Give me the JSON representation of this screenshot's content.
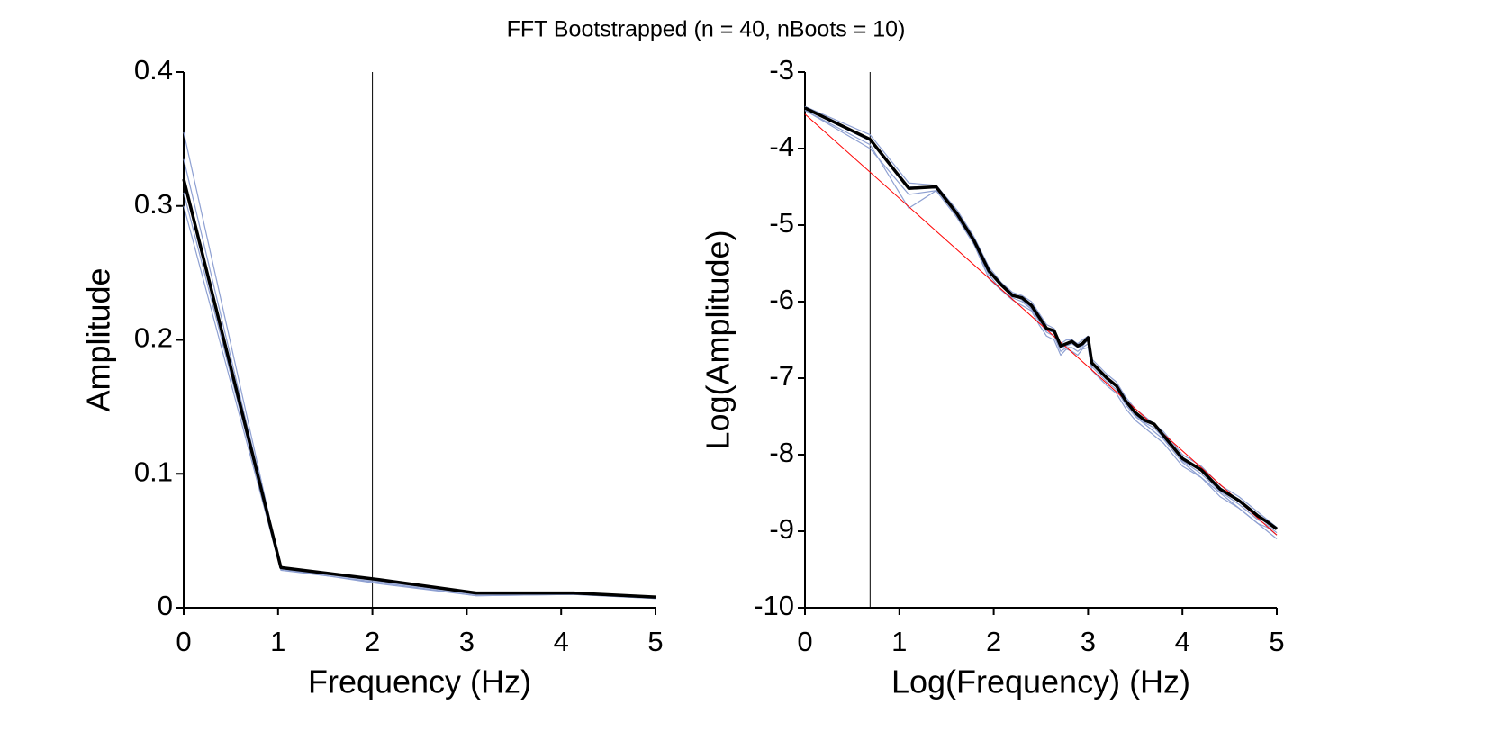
{
  "title": "FFT Bootstrapped (n = 40, nBoots = 10)",
  "chart_data": [
    {
      "type": "line",
      "xlabel": "Frequency (Hz)",
      "ylabel": "Amplitude",
      "x": [
        0,
        1.03,
        2.07,
        3.1,
        4.13,
        5
      ],
      "xlim": [
        0,
        5
      ],
      "xticks": [
        0,
        1,
        2,
        3,
        4,
        5
      ],
      "ylim": [
        0,
        0.4
      ],
      "yticks": [
        0,
        0.1,
        0.2,
        0.3,
        0.4
      ],
      "vline": 2,
      "series": [
        {
          "color": "#8ea0d2",
          "linewidth": 1.2,
          "values": [
            0.355,
            0.029,
            0.02,
            0.01,
            0.01,
            0.008
          ]
        },
        {
          "color": "#8ea0d2",
          "linewidth": 1.2,
          "values": [
            0.3,
            0.028,
            0.019,
            0.009,
            0.01,
            0.007
          ]
        },
        {
          "color": "#8ea0d2",
          "linewidth": 1.2,
          "values": [
            0.335,
            0.03,
            0.02,
            0.01,
            0.011,
            0.008
          ]
        },
        {
          "color": "#8ea0d2",
          "linewidth": 1.2,
          "values": [
            0.31,
            0.029,
            0.018,
            0.009,
            0.01,
            0.007
          ]
        },
        {
          "color": "#000000",
          "linewidth": 3.5,
          "values": [
            0.32,
            0.03,
            0.021,
            0.011,
            0.011,
            0.008
          ]
        }
      ]
    },
    {
      "type": "line",
      "xlabel": "Log(Frequency) (Hz)",
      "ylabel": "Log(Amplitude)",
      "x": [
        0,
        0.69,
        1.1,
        1.39,
        1.61,
        1.79,
        1.95,
        2.08,
        2.2,
        2.3,
        2.4,
        2.48,
        2.56,
        2.64,
        2.71,
        2.77,
        2.83,
        2.89,
        2.94,
        3.0,
        3.04,
        3.2,
        3.3,
        3.4,
        3.5,
        3.6,
        3.7,
        3.8,
        3.9,
        4.0,
        4.2,
        4.4,
        4.6,
        4.8,
        4.9,
        5.0
      ],
      "xlim": [
        0,
        5
      ],
      "xticks": [
        0,
        1,
        2,
        3,
        4,
        5
      ],
      "ylim": [
        -10,
        -3
      ],
      "yticks": [
        -10,
        -9,
        -8,
        -7,
        -6,
        -5,
        -4,
        -3
      ],
      "vline": 0.69,
      "series": [
        {
          "color": "#8ea0d2",
          "linewidth": 1.2,
          "values": [
            -3.5,
            -3.95,
            -4.78,
            -4.55,
            -4.9,
            -5.25,
            -5.65,
            -5.85,
            -5.95,
            -6.0,
            -6.1,
            -6.25,
            -6.4,
            -6.45,
            -6.65,
            -6.6,
            -6.6,
            -6.65,
            -6.6,
            -6.55,
            -6.85,
            -7.05,
            -7.15,
            -7.35,
            -7.5,
            -7.6,
            -7.7,
            -7.8,
            -7.95,
            -8.1,
            -8.3,
            -8.5,
            -8.7,
            -8.9,
            -8.95,
            -9.05
          ]
        },
        {
          "color": "#8ea0d2",
          "linewidth": 1.2,
          "values": [
            -3.45,
            -3.82,
            -4.45,
            -4.48,
            -4.8,
            -5.15,
            -5.55,
            -5.75,
            -5.88,
            -5.92,
            -6.0,
            -6.15,
            -6.3,
            -6.35,
            -6.55,
            -6.5,
            -6.5,
            -6.55,
            -6.5,
            -6.45,
            -6.75,
            -6.95,
            -7.05,
            -7.25,
            -7.4,
            -7.5,
            -7.6,
            -7.7,
            -7.85,
            -8.0,
            -8.15,
            -8.4,
            -8.55,
            -8.75,
            -8.85,
            -8.95
          ]
        },
        {
          "color": "#8ea0d2",
          "linewidth": 1.2,
          "values": [
            -3.5,
            -4.0,
            -4.6,
            -4.55,
            -4.9,
            -5.25,
            -5.7,
            -5.85,
            -5.98,
            -6.05,
            -6.12,
            -6.3,
            -6.45,
            -6.5,
            -6.7,
            -6.62,
            -6.65,
            -6.7,
            -6.62,
            -6.6,
            -6.9,
            -7.1,
            -7.2,
            -7.4,
            -7.55,
            -7.65,
            -7.75,
            -7.85,
            -8.0,
            -8.15,
            -8.3,
            -8.55,
            -8.7,
            -8.9,
            -9.0,
            -9.1
          ]
        },
        {
          "color": "#8ea0d2",
          "linewidth": 1.2,
          "values": [
            -3.48,
            -3.9,
            -4.5,
            -4.52,
            -4.85,
            -5.22,
            -5.62,
            -5.8,
            -5.9,
            -5.98,
            -6.08,
            -6.22,
            -6.38,
            -6.4,
            -6.6,
            -6.58,
            -6.55,
            -6.6,
            -6.58,
            -6.5,
            -6.82,
            -7.02,
            -7.12,
            -7.32,
            -7.48,
            -7.58,
            -7.65,
            -7.78,
            -7.92,
            -8.08,
            -8.25,
            -8.48,
            -8.65,
            -8.85,
            -8.92,
            -9.02
          ]
        },
        {
          "color": "#ff0000",
          "linewidth": 1,
          "x": [
            0,
            5
          ],
          "values": [
            -3.55,
            -9.05
          ]
        },
        {
          "color": "#000000",
          "linewidth": 3.5,
          "values": [
            -3.47,
            -3.88,
            -4.52,
            -4.5,
            -4.85,
            -5.2,
            -5.6,
            -5.78,
            -5.92,
            -5.95,
            -6.05,
            -6.2,
            -6.35,
            -6.38,
            -6.58,
            -6.55,
            -6.52,
            -6.58,
            -6.55,
            -6.47,
            -6.8,
            -7.0,
            -7.1,
            -7.3,
            -7.45,
            -7.55,
            -7.6,
            -7.75,
            -7.9,
            -8.05,
            -8.2,
            -8.45,
            -8.6,
            -8.8,
            -8.88,
            -8.97
          ]
        }
      ]
    }
  ]
}
